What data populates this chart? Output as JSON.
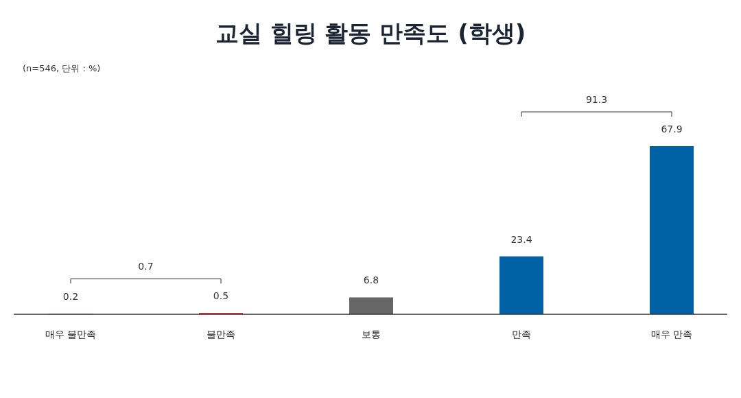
{
  "chart_data": {
    "type": "bar",
    "title": "교실 힐링 활동 만족도 (학생)",
    "subtitle": "(n=546, 단위 : %)",
    "categories": [
      "매우 불만족",
      "불만족",
      "보통",
      "만족",
      "매우 만족"
    ],
    "values": [
      0.2,
      0.5,
      6.8,
      23.4,
      67.9
    ],
    "colors": [
      "#8c1d40",
      "#c8102e",
      "#666666",
      "#0062a6",
      "#0062a6"
    ],
    "data_labels": true,
    "annotations": [
      "0.7",
      "91.3"
    ]
  }
}
